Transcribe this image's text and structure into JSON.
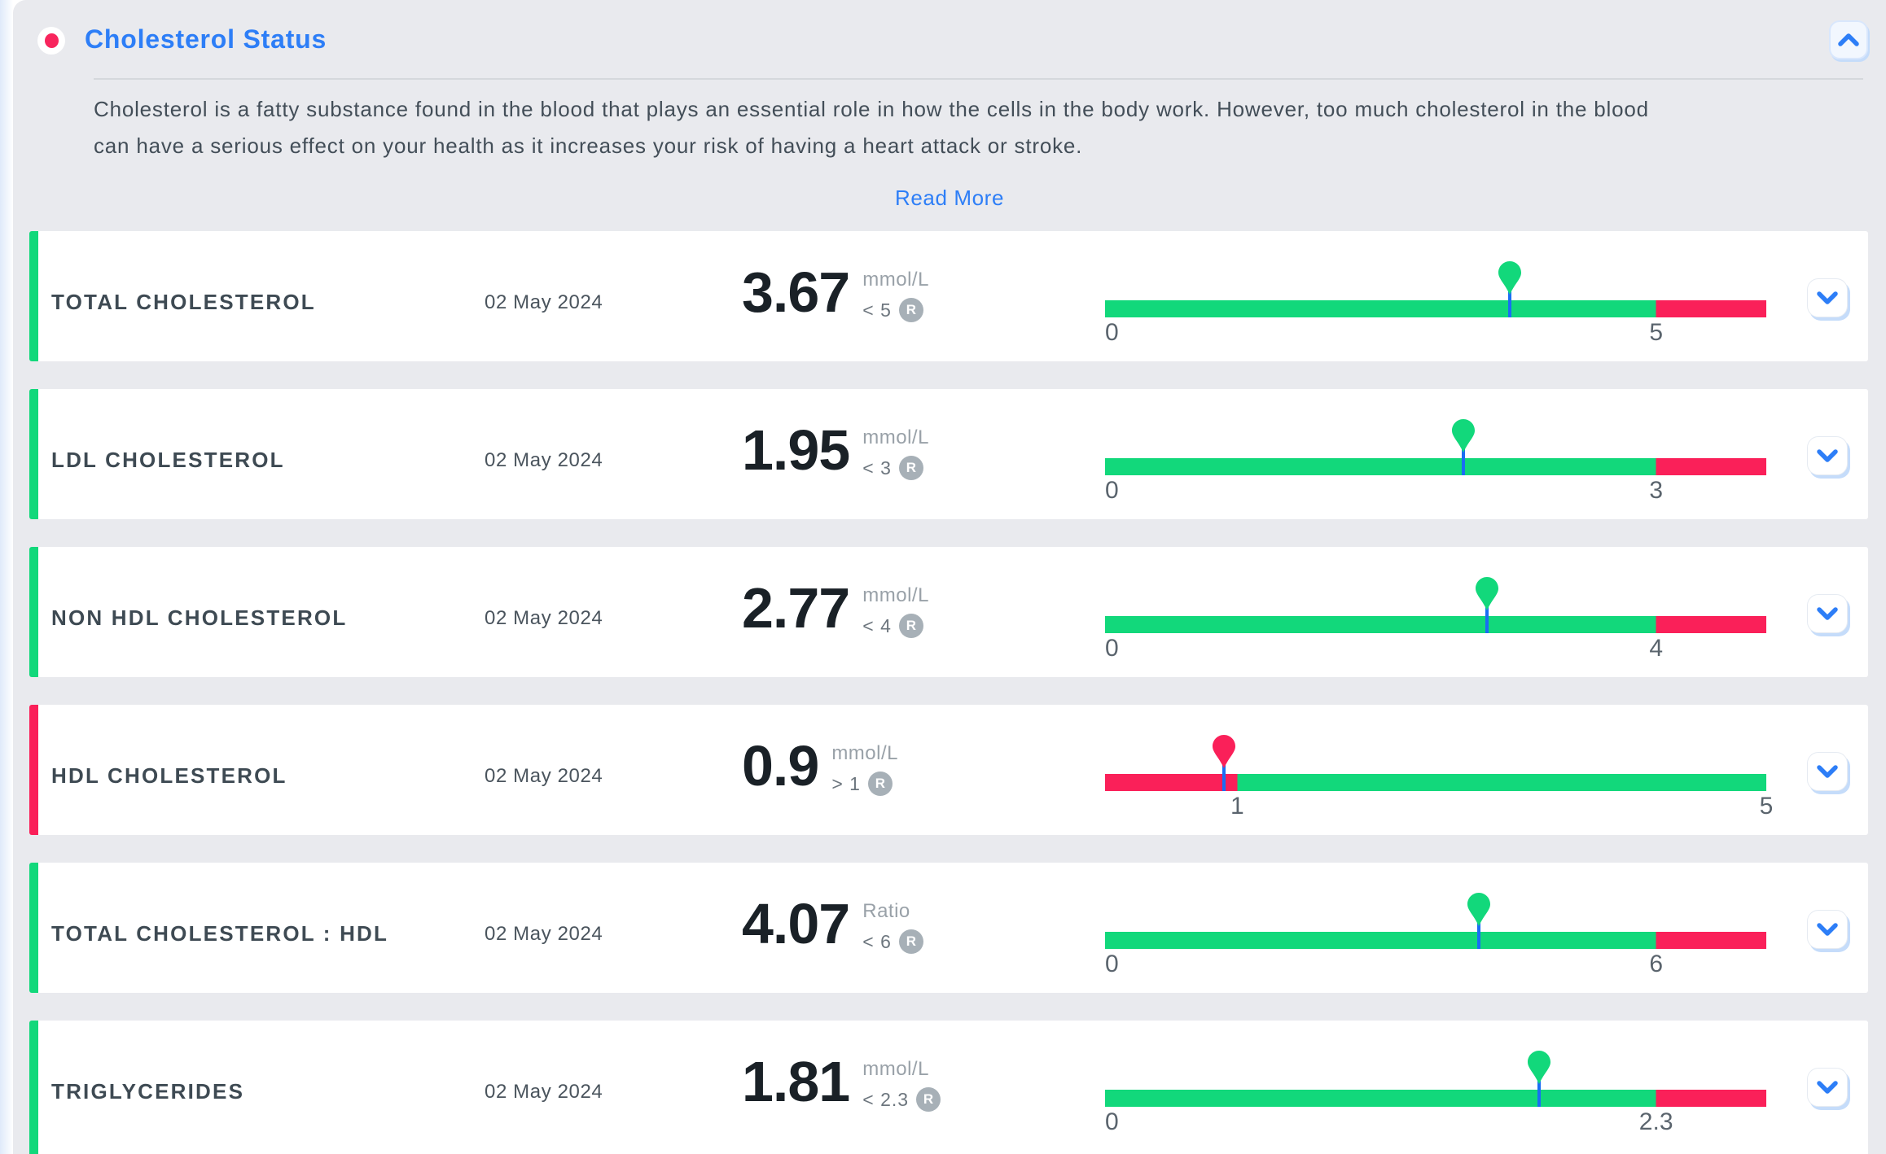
{
  "panel": {
    "title": "Cholesterol Status",
    "description": "Cholesterol is a fatty substance found in the blood that plays an essential role in how the cells in the body work. However, too much cholesterol in the blood can have a serious effect on your health as it increases your risk of having a heart attack or stroke.",
    "read_more_label": "Read More"
  },
  "labels": {
    "reference_badge": "R"
  },
  "colors": {
    "accent_blue": "#2d7ef7",
    "green": "#12d87b",
    "pink": "#fa2059",
    "stem_blue": "#1a6df4",
    "panel_bg": "#e9eaee",
    "card_bg": "#ffffff"
  },
  "rows": [
    {
      "name": "TOTAL CHOLESTEROL",
      "date": "02 May 2024",
      "value": "3.67",
      "unit": "mmol/L",
      "reference": "< 5",
      "status_color": "green",
      "bar": {
        "min": 0,
        "max": 6,
        "threshold": 5,
        "healthy": "below",
        "labels": [
          {
            "text": "0",
            "value": 0,
            "anchor": "start"
          },
          {
            "text": "5",
            "value": 5,
            "anchor": "middle"
          }
        ]
      }
    },
    {
      "name": "LDL CHOLESTEROL",
      "date": "02 May 2024",
      "value": "1.95",
      "unit": "mmol/L",
      "reference": "< 3",
      "status_color": "green",
      "bar": {
        "min": 0,
        "max": 3.6,
        "threshold": 3,
        "healthy": "below",
        "labels": [
          {
            "text": "0",
            "value": 0,
            "anchor": "start"
          },
          {
            "text": "3",
            "value": 3,
            "anchor": "middle"
          }
        ]
      }
    },
    {
      "name": "NON HDL CHOLESTEROL",
      "date": "02 May 2024",
      "value": "2.77",
      "unit": "mmol/L",
      "reference": "< 4",
      "status_color": "green",
      "bar": {
        "min": 0,
        "max": 4.8,
        "threshold": 4,
        "healthy": "below",
        "labels": [
          {
            "text": "0",
            "value": 0,
            "anchor": "start"
          },
          {
            "text": "4",
            "value": 4,
            "anchor": "middle"
          }
        ]
      }
    },
    {
      "name": "HDL CHOLESTEROL",
      "date": "02 May 2024",
      "value": "0.9",
      "unit": "mmol/L",
      "reference": "> 1",
      "status_color": "pink",
      "bar": {
        "min": 0,
        "max": 5,
        "threshold": 1,
        "healthy": "above",
        "labels": [
          {
            "text": "1",
            "value": 1,
            "anchor": "middle"
          },
          {
            "text": "5",
            "value": 5,
            "anchor": "middle"
          }
        ]
      }
    },
    {
      "name": "TOTAL CHOLESTEROL : HDL",
      "date": "02 May 2024",
      "value": "4.07",
      "unit": "Ratio",
      "reference": "< 6",
      "status_color": "green",
      "bar": {
        "min": 0,
        "max": 7.2,
        "threshold": 6,
        "healthy": "below",
        "labels": [
          {
            "text": "0",
            "value": 0,
            "anchor": "start"
          },
          {
            "text": "6",
            "value": 6,
            "anchor": "middle"
          }
        ]
      }
    },
    {
      "name": "TRIGLYCERIDES",
      "date": "02 May 2024",
      "value": "1.81",
      "unit": "mmol/L",
      "reference": "< 2.3",
      "status_color": "green",
      "bar": {
        "min": 0,
        "max": 2.76,
        "threshold": 2.3,
        "healthy": "below",
        "labels": [
          {
            "text": "0",
            "value": 0,
            "anchor": "start"
          },
          {
            "text": "2.3",
            "value": 2.3,
            "anchor": "middle"
          }
        ]
      }
    }
  ]
}
